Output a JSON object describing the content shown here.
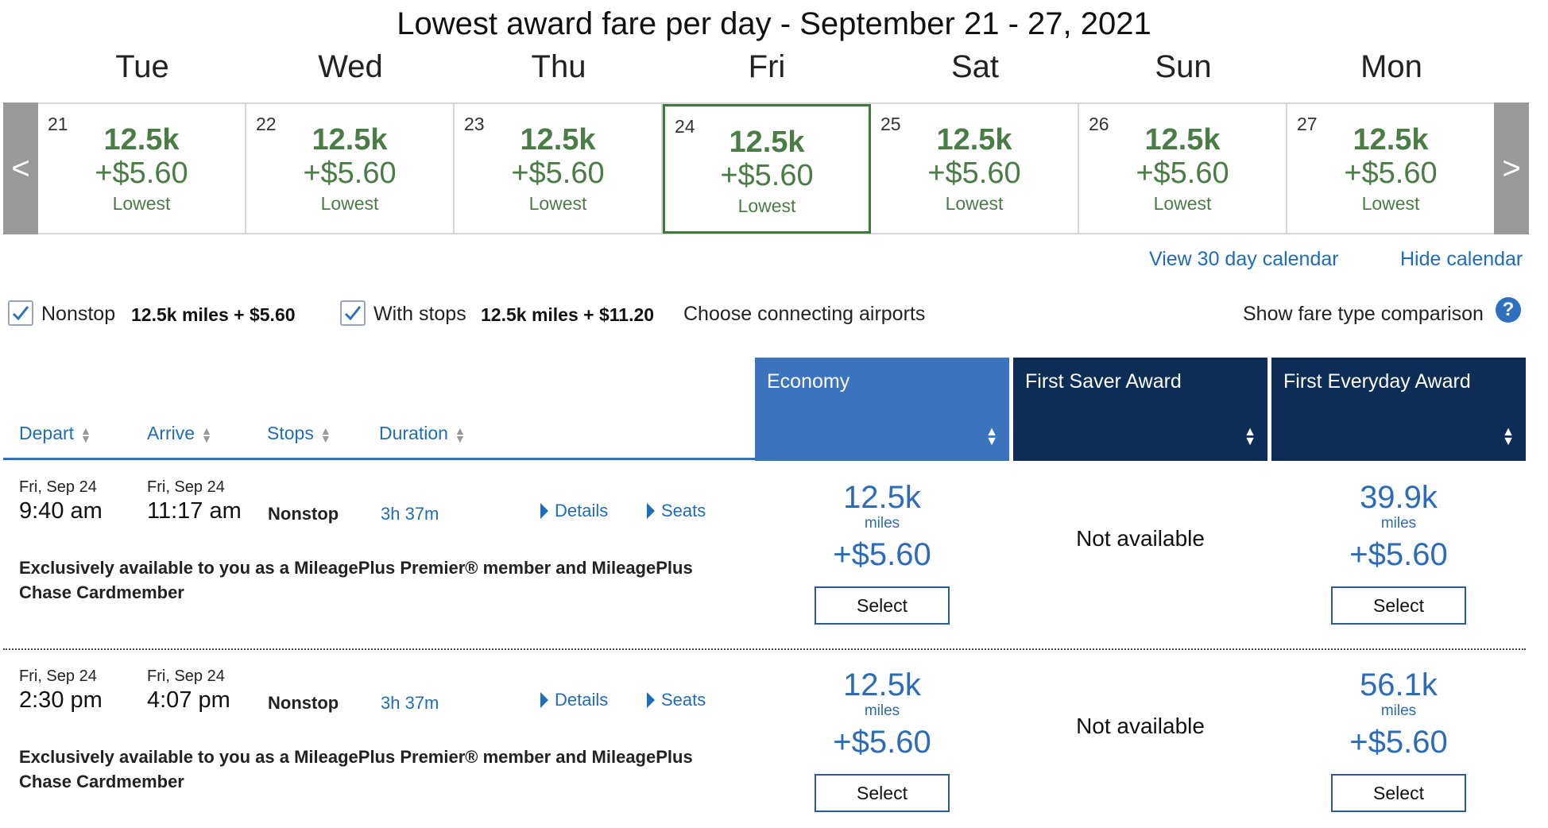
{
  "title": "Lowest award fare per day - September 21 - 27, 2021",
  "calendar": {
    "prev_label": "<",
    "next_label": ">",
    "days": [
      {
        "name": "Tue",
        "num": "21",
        "miles": "12.5k",
        "price": "+$5.60",
        "tag": "Lowest"
      },
      {
        "name": "Wed",
        "num": "22",
        "miles": "12.5k",
        "price": "+$5.60",
        "tag": "Lowest"
      },
      {
        "name": "Thu",
        "num": "23",
        "miles": "12.5k",
        "price": "+$5.60",
        "tag": "Lowest"
      },
      {
        "name": "Fri",
        "num": "24",
        "miles": "12.5k",
        "price": "+$5.60",
        "tag": "Lowest",
        "selected": true
      },
      {
        "name": "Sat",
        "num": "25",
        "miles": "12.5k",
        "price": "+$5.60",
        "tag": "Lowest"
      },
      {
        "name": "Sun",
        "num": "26",
        "miles": "12.5k",
        "price": "+$5.60",
        "tag": "Lowest"
      },
      {
        "name": "Mon",
        "num": "27",
        "miles": "12.5k",
        "price": "+$5.60",
        "tag": "Lowest"
      }
    ],
    "view_30_day": "View 30 day calendar",
    "hide": "Hide calendar"
  },
  "filters": {
    "nonstop_label": "Nonstop",
    "nonstop_checked": true,
    "nonstop_fare": "12.5k miles + $5.60",
    "withstops_label": "With stops",
    "withstops_checked": true,
    "withstops_fare": "12.5k miles + $11.20",
    "connecting_link": "Choose connecting airports",
    "comparison_link": "Show fare type comparison",
    "help_icon": "?"
  },
  "columns": {
    "depart": "Depart",
    "arrive": "Arrive",
    "stops": "Stops",
    "duration": "Duration",
    "fare_types": [
      "Economy",
      "First Saver Award",
      "First Everyday Award"
    ]
  },
  "flights": [
    {
      "depart_date": "Fri, Sep 24",
      "depart_time": "9:40 am",
      "arrive_date": "Fri, Sep 24",
      "arrive_time": "11:17 am",
      "stops": "Nonstop",
      "duration": "3h 37m",
      "details": "Details",
      "seats": "Seats",
      "note": "Exclusively available to you as a MileagePlus Premier® member and MileagePlus Chase Cardmember",
      "economy": {
        "miles": "12.5k",
        "unit": "miles",
        "price": "+$5.60",
        "select": "Select"
      },
      "first_saver": {
        "text": "Not available"
      },
      "first_everyday": {
        "miles": "39.9k",
        "unit": "miles",
        "price": "+$5.60",
        "select": "Select"
      }
    },
    {
      "depart_date": "Fri, Sep 24",
      "depart_time": "2:30 pm",
      "arrive_date": "Fri, Sep 24",
      "arrive_time": "4:07 pm",
      "stops": "Nonstop",
      "duration": "3h 37m",
      "details": "Details",
      "seats": "Seats",
      "note": "Exclusively available to you as a MileagePlus Premier® member and MileagePlus Chase Cardmember",
      "economy": {
        "miles": "12.5k",
        "unit": "miles",
        "price": "+$5.60",
        "select": "Select"
      },
      "first_saver": {
        "text": "Not available"
      },
      "first_everyday": {
        "miles": "56.1k",
        "unit": "miles",
        "price": "+$5.60",
        "select": "Select"
      }
    }
  ],
  "colors": {
    "fare_green": "#4a7d45",
    "link_blue": "#1f6cb8",
    "economy_header": "#3b73bc",
    "first_header": "#0d2d57",
    "selected_border": "#3e7a3c"
  }
}
